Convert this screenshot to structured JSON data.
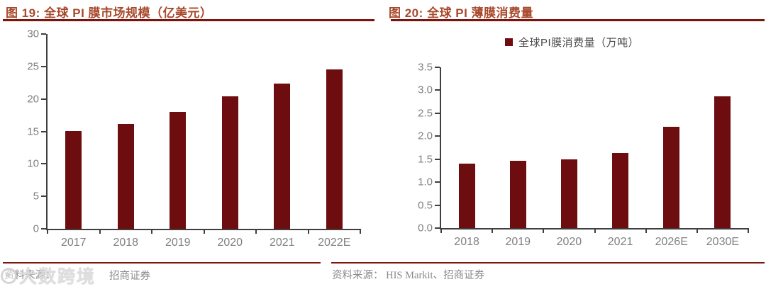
{
  "colors": {
    "bar": "#6E0D0F",
    "title": "#A8492C",
    "rule": "#7D150F",
    "axis": "#3F3F3F",
    "tick_label": "#808080",
    "legend_text": "#4A4A4A",
    "source": "#8A8A8A",
    "watermark": "#D9D9D9"
  },
  "panels": [
    {
      "title": "图 19:  全球 PI 膜市场规模（亿美元）"
    },
    {
      "title": "图 20:  全球 PI 薄膜消费量"
    }
  ],
  "chart_data": [
    {
      "type": "bar",
      "title": "全球 PI 膜市场规模（亿美元）",
      "categories": [
        "2017",
        "2018",
        "2019",
        "2020",
        "2021",
        "2022E"
      ],
      "values": [
        15.1,
        16.2,
        18.0,
        20.4,
        22.4,
        24.5
      ],
      "xlabel": "",
      "ylabel": "",
      "ylim": [
        0,
        30
      ],
      "yticks": [
        {
          "value": 0,
          "label": "0"
        },
        {
          "value": 5,
          "label": "5"
        },
        {
          "value": 10,
          "label": "10"
        },
        {
          "value": 15,
          "label": "15"
        },
        {
          "value": 20,
          "label": "20"
        },
        {
          "value": 25,
          "label": "25"
        },
        {
          "value": 30,
          "label": "30"
        }
      ],
      "grid": false,
      "legend": null,
      "bar_color": "#6E0D0F"
    },
    {
      "type": "bar",
      "title": "全球 PI 薄膜消费量",
      "categories": [
        "2018",
        "2019",
        "2020",
        "2021",
        "2026E",
        "2030E"
      ],
      "values": [
        1.4,
        1.46,
        1.49,
        1.63,
        2.21,
        2.87
      ],
      "xlabel": "",
      "ylabel": "",
      "ylim": [
        0,
        3.5
      ],
      "yticks": [
        {
          "value": 0,
          "label": "0.0"
        },
        {
          "value": 0.5,
          "label": "0.5"
        },
        {
          "value": 1.0,
          "label": "1.0"
        },
        {
          "value": 1.5,
          "label": "1.5"
        },
        {
          "value": 2.0,
          "label": "2.0"
        },
        {
          "value": 2.5,
          "label": "2.5"
        },
        {
          "value": 3.0,
          "label": "3.0"
        },
        {
          "value": 3.5,
          "label": "3.5"
        }
      ],
      "grid": false,
      "legend": "全球PI膜消费量（万吨）",
      "legend_position": "top",
      "bar_color": "#6E0D0F"
    }
  ],
  "footers": {
    "left": {
      "prefix": "资料来源：",
      "suffix": "招商证券"
    },
    "right": {
      "text": "资料来源： HIS Markit、招商证券"
    }
  },
  "watermark": {
    "text": "大数跨境",
    "logo": "circle-pixel-logo"
  }
}
